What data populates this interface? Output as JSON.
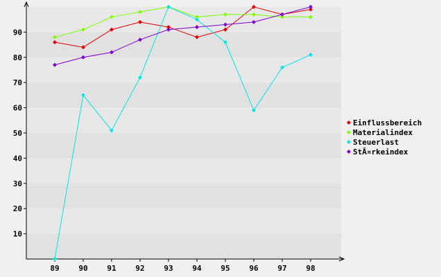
{
  "chart_data": {
    "type": "line",
    "title": "",
    "xlabel": "",
    "ylabel": "",
    "categories": [
      "89",
      "90",
      "91",
      "92",
      "93",
      "94",
      "95",
      "96",
      "97",
      "98"
    ],
    "ylim": [
      0,
      100
    ],
    "yticks": [
      10,
      20,
      30,
      40,
      50,
      60,
      70,
      80,
      90
    ],
    "grid": "horizontal alternating bands",
    "legend_position": "right",
    "series": [
      {
        "name": "Einflussbereich",
        "color": "#e00000",
        "values": [
          86,
          84,
          91,
          94,
          92,
          88,
          91,
          100,
          97,
          99
        ]
      },
      {
        "name": "Materialindex",
        "color": "#7fff00",
        "values": [
          88,
          91,
          96,
          98,
          100,
          96,
          97,
          97,
          96,
          96
        ]
      },
      {
        "name": "Steuerlast",
        "color": "#00e5e5",
        "values": [
          0,
          65,
          51,
          72,
          100,
          95,
          86,
          59,
          76,
          81
        ]
      },
      {
        "name": "StÃ¤rkeindex",
        "color": "#7f00cc",
        "values": [
          77,
          80,
          82,
          87,
          91,
          92,
          93,
          94,
          97,
          100
        ]
      }
    ]
  }
}
